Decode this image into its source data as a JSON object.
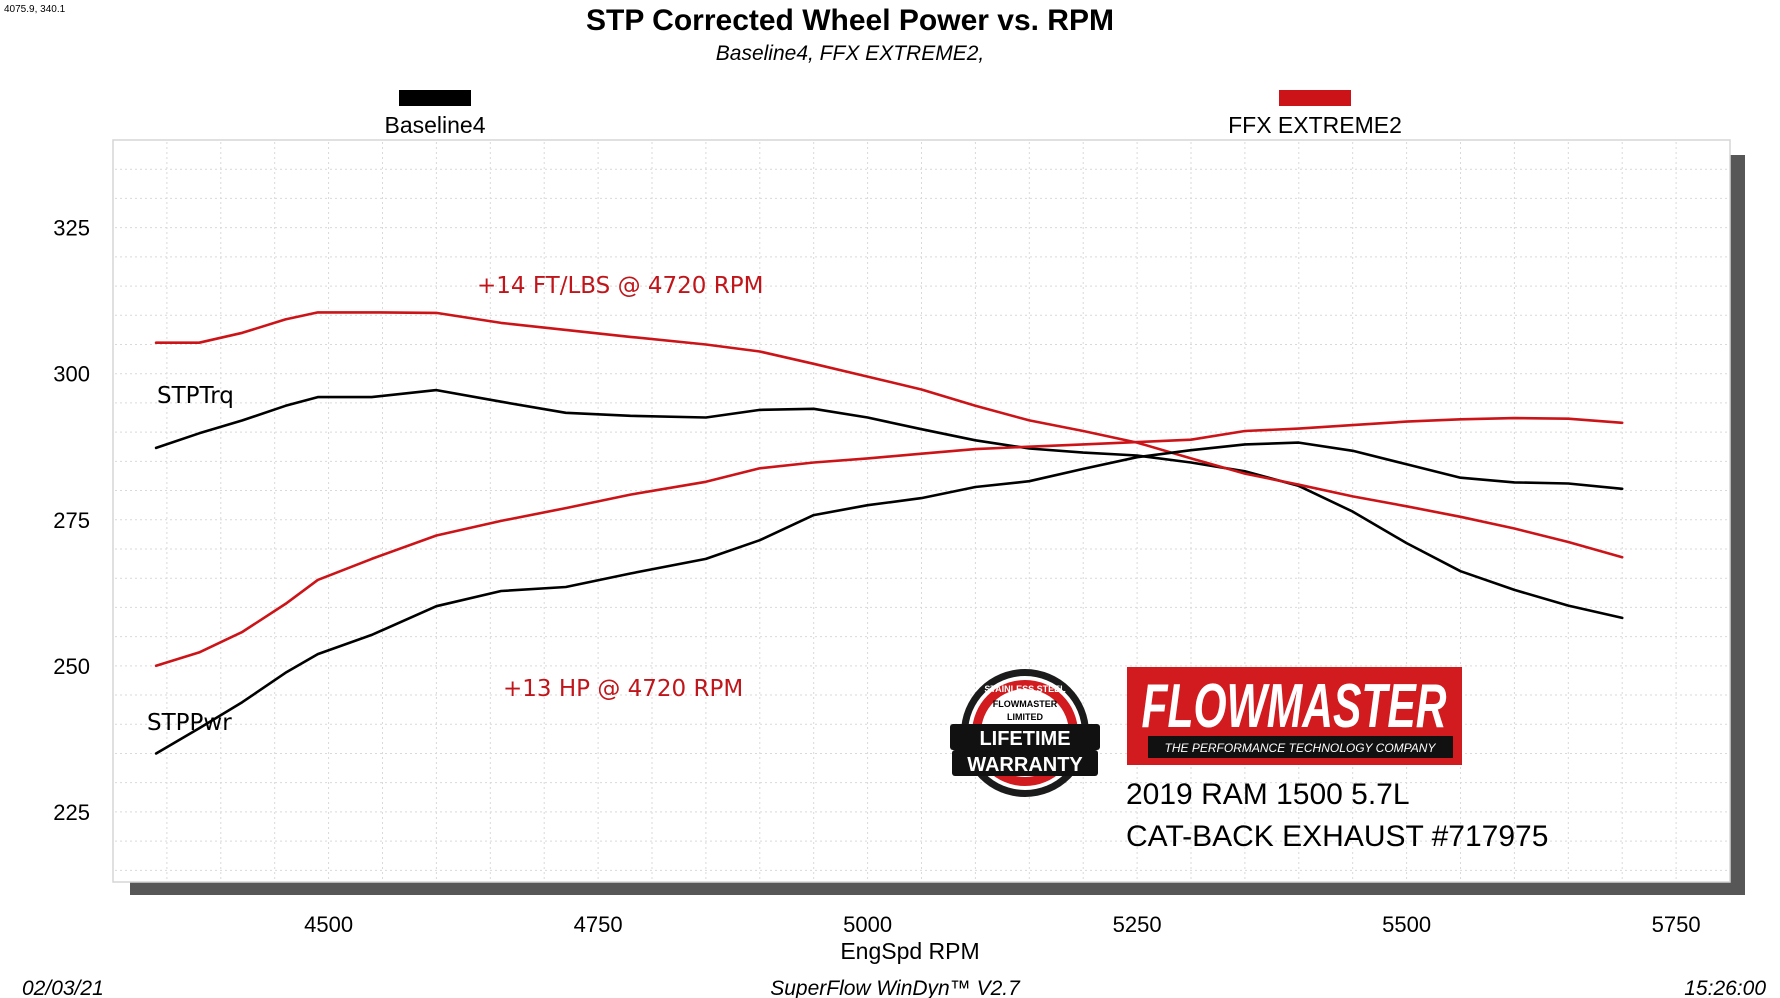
{
  "corner_readout": "4075.9, 340.1",
  "footer": {
    "date": "02/03/21",
    "software": "SuperFlow WinDyn™  V2.7",
    "time": "15:26:00"
  },
  "colors": {
    "baseline": "#000000",
    "ffx": "#cc1418",
    "brand_red": "#d11b1f"
  },
  "brand": {
    "logo_text": "FLOWMASTER",
    "tagline": "THE PERFORMANCE TECHNOLOGY COMPANY",
    "warranty": [
      "STAINLESS STEEL",
      "FLOWMASTER",
      "LIMITED",
      "LIFETIME",
      "WARRANTY"
    ]
  },
  "vehicle": {
    "line1": "2019 RAM 1500 5.7L",
    "line2": "CAT-BACK EXHAUST #717975"
  },
  "chart_data": {
    "type": "line",
    "title": "STP Corrected Wheel Power vs. RPM",
    "subtitle": "Baseline4,  FFX EXTREME2,",
    "xlabel": "EngSpd  RPM",
    "ylabel": "",
    "xlim": [
      4300,
      5800
    ],
    "ylim": [
      213,
      340
    ],
    "xticks": [
      4500,
      4750,
      5000,
      5250,
      5500,
      5750
    ],
    "yticks": [
      225,
      250,
      275,
      300,
      325
    ],
    "grid": true,
    "legend": {
      "placement": "top",
      "entries": [
        {
          "name": "Baseline4",
          "color": "#000000"
        },
        {
          "name": "FFX EXTREME2",
          "color": "#cc1418"
        }
      ]
    },
    "series_labels": {
      "torque": "STPTrq",
      "power": "STPPwr"
    },
    "annotations": {
      "torque_gain": "+14 FT/LBS @ 4720 RPM",
      "power_gain": "+13 HP @ 4720 RPM"
    },
    "series": [
      {
        "name": "Baseline4",
        "quantity": "torque",
        "color": "#000000",
        "x": [
          4340,
          4380,
          4420,
          4460,
          4490,
          4540,
          4600,
          4660,
          4720,
          4780,
          4850,
          4900,
          4950,
          5000,
          5050,
          5100,
          5150,
          5200,
          5250,
          5300,
          5350,
          5400,
          5450,
          5500,
          5550,
          5600,
          5650,
          5700
        ],
        "y": [
          287.3,
          289.8,
          292.0,
          294.5,
          296.0,
          296.0,
          297.2,
          295.2,
          293.3,
          292.8,
          292.5,
          293.8,
          294.0,
          292.5,
          290.5,
          288.6,
          287.2,
          286.5,
          286.0,
          284.8,
          283.3,
          280.8,
          276.4,
          271.0,
          266.2,
          263.0,
          260.3,
          258.2
        ]
      },
      {
        "name": "FFX EXTREME2",
        "quantity": "torque",
        "color": "#cc1418",
        "x": [
          4340,
          4380,
          4420,
          4460,
          4490,
          4540,
          4600,
          4660,
          4720,
          4780,
          4850,
          4900,
          4950,
          5000,
          5050,
          5100,
          5150,
          5200,
          5250,
          5300,
          5350,
          5400,
          5450,
          5500,
          5550,
          5600,
          5650,
          5700
        ],
        "y": [
          305.3,
          305.3,
          307.0,
          309.3,
          310.5,
          310.5,
          310.4,
          308.7,
          307.5,
          306.3,
          305.0,
          303.8,
          301.7,
          299.5,
          297.3,
          294.5,
          292.0,
          290.2,
          288.2,
          285.5,
          282.9,
          281.0,
          279.0,
          277.3,
          275.5,
          273.5,
          271.2,
          268.6
        ]
      },
      {
        "name": "Baseline4",
        "quantity": "power",
        "color": "#000000",
        "x": [
          4340,
          4380,
          4420,
          4460,
          4490,
          4540,
          4600,
          4660,
          4720,
          4780,
          4850,
          4900,
          4950,
          5000,
          5050,
          5100,
          5150,
          5200,
          5250,
          5300,
          5350,
          5400,
          5450,
          5500,
          5550,
          5600,
          5650,
          5700
        ],
        "y": [
          235.0,
          239.3,
          243.8,
          248.8,
          252.0,
          255.3,
          260.2,
          262.8,
          263.5,
          265.8,
          268.3,
          271.5,
          275.8,
          277.5,
          278.7,
          280.6,
          281.6,
          283.7,
          285.7,
          286.9,
          287.9,
          288.2,
          286.8,
          284.5,
          282.2,
          281.4,
          281.2,
          280.3
        ]
      },
      {
        "name": "FFX EXTREME2",
        "quantity": "power",
        "color": "#cc1418",
        "x": [
          4340,
          4380,
          4420,
          4460,
          4490,
          4540,
          4600,
          4660,
          4720,
          4780,
          4850,
          4900,
          4950,
          5000,
          5050,
          5100,
          5150,
          5200,
          5250,
          5300,
          5350,
          5400,
          5450,
          5500,
          5550,
          5600,
          5650,
          5700
        ],
        "y": [
          250.0,
          252.3,
          255.8,
          260.6,
          264.7,
          268.3,
          272.3,
          274.8,
          277.0,
          279.3,
          281.5,
          283.8,
          284.8,
          285.5,
          286.3,
          287.1,
          287.5,
          287.9,
          288.3,
          288.7,
          290.2,
          290.6,
          291.2,
          291.8,
          292.2,
          292.4,
          292.3,
          291.6
        ]
      }
    ]
  }
}
